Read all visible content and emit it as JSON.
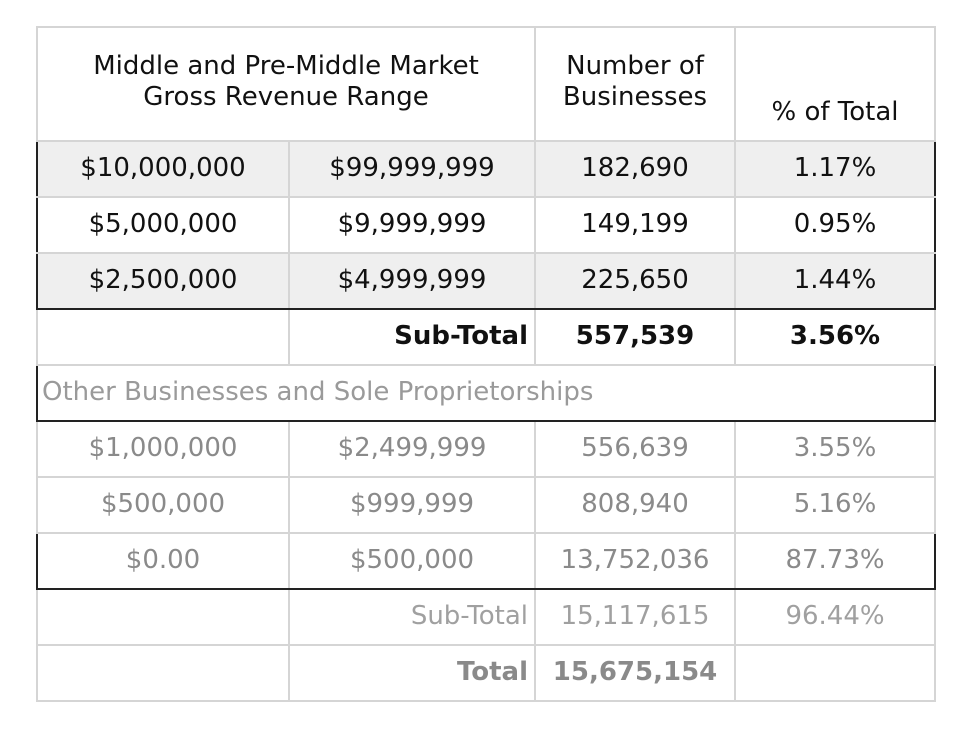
{
  "header": {
    "range_line1": "Middle and Pre-Middle Market",
    "range_line2": "Gross Revenue Range",
    "count_line1": "Number of",
    "count_line2": "Businesses",
    "pct": "% of Total"
  },
  "middle_rows": [
    {
      "low": "$10,000,000",
      "high": "$99,999,999",
      "count": "182,690",
      "pct": "1.17%"
    },
    {
      "low": "$5,000,000",
      "high": "$9,999,999",
      "count": "149,199",
      "pct": "0.95%"
    },
    {
      "low": "$2,500,000",
      "high": "$4,999,999",
      "count": "225,650",
      "pct": "1.44%"
    }
  ],
  "middle_subtotal": {
    "label": "Sub-Total",
    "count": "557,539",
    "pct": "3.56%"
  },
  "other_section": {
    "title": "Other Businesses and Sole Proprietorships"
  },
  "other_rows": [
    {
      "low": "$1,000,000",
      "high": "$2,499,999",
      "count": "556,639",
      "pct": "3.55%"
    },
    {
      "low": "$500,000",
      "high": "$999,999",
      "count": "808,940",
      "pct": "5.16%"
    },
    {
      "low": "$0.00",
      "high": "$500,000",
      "count": "13,752,036",
      "pct": "87.73%"
    }
  ],
  "other_subtotal": {
    "label": "Sub-Total",
    "count": "15,117,615",
    "pct": "96.44%"
  },
  "total": {
    "label": "Total",
    "count": "15,675,154"
  }
}
